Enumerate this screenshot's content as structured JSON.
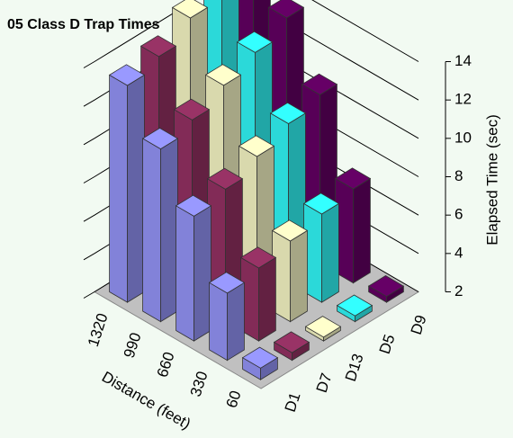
{
  "chart_data": {
    "type": "bar3d",
    "title": "05 Class D Trap Times",
    "x_label": "Distance (feet)",
    "y_label": "Elapsed Time (sec)",
    "categories": [
      "60",
      "330",
      "660",
      "990",
      "1320"
    ],
    "series": [
      {
        "name": "D1",
        "color": "#9999ff",
        "values": [
          2.6,
          5.5,
          8.5,
          11.0,
          13.3
        ]
      },
      {
        "name": "D7",
        "color": "#993366",
        "values": [
          2.4,
          5.8,
          8.9,
          11.5,
          13.8
        ]
      },
      {
        "name": "D13",
        "color": "#ffffcc",
        "values": [
          2.2,
          6.2,
          9.6,
          12.3,
          14.8
        ]
      },
      {
        "name": "D5",
        "color": "#33ffff",
        "values": [
          2.3,
          6.6,
          10.3,
          13.0,
          15.6
        ]
      },
      {
        "name": "D9",
        "color": "#660066",
        "values": [
          2.3,
          6.9,
          10.8,
          13.8,
          16.3
        ]
      }
    ],
    "ylim": [
      2,
      14
    ],
    "yticks": [
      2,
      4,
      6,
      8,
      10,
      12,
      14
    ],
    "grid": true
  }
}
